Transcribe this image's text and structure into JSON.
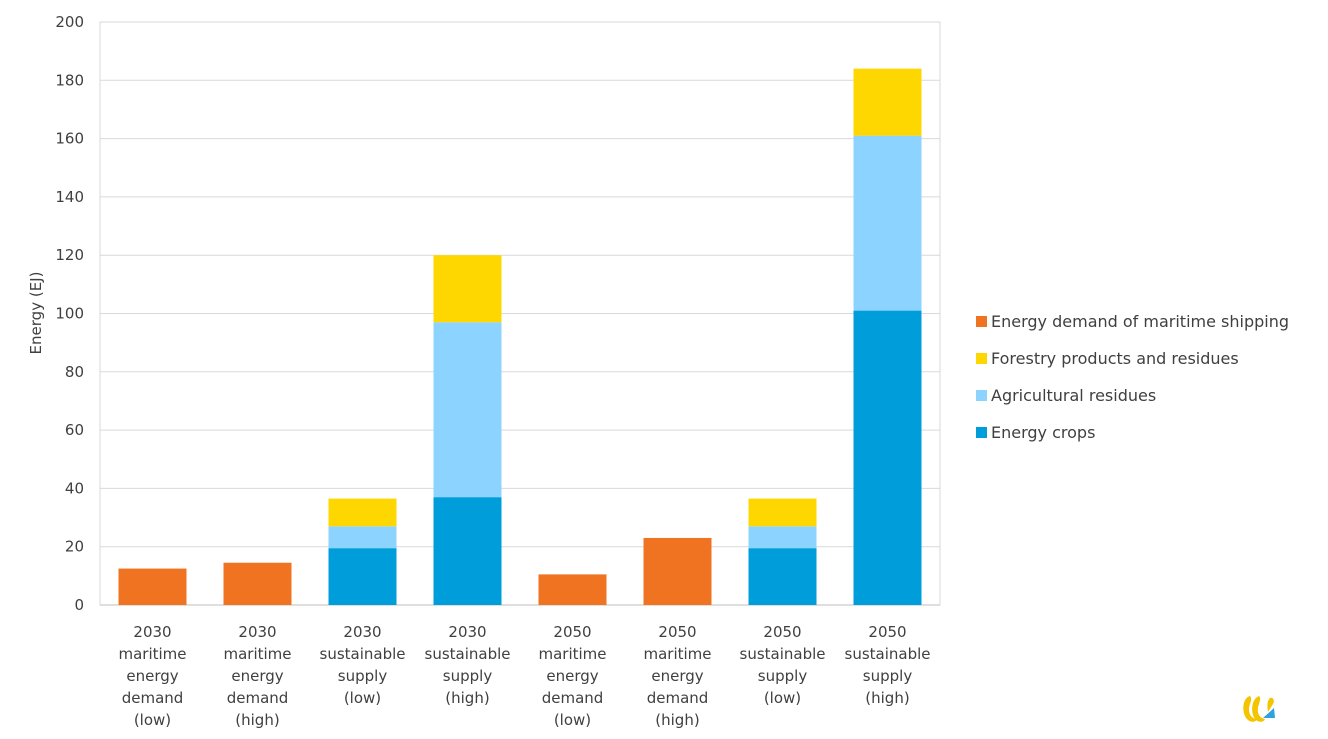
{
  "chart_data": {
    "type": "bar",
    "stacked": true,
    "ylabel": "Energy (EJ)",
    "ylim": [
      0,
      200
    ],
    "yticks": [
      0,
      20,
      40,
      60,
      80,
      100,
      120,
      140,
      160,
      180,
      200
    ],
    "grid": true,
    "legend_position": "right",
    "categories": [
      [
        "2030",
        "maritime",
        "energy",
        "demand",
        "(low)"
      ],
      [
        "2030",
        "maritime",
        "energy",
        "demand",
        "(high)"
      ],
      [
        "2030",
        "sustainable",
        "supply",
        "(low)"
      ],
      [
        "2030",
        "sustainable",
        "supply",
        "(high)"
      ],
      [
        "2050",
        "maritime",
        "energy",
        "demand",
        "(low)"
      ],
      [
        "2050",
        "maritime",
        "energy",
        "demand",
        "(high)"
      ],
      [
        "2050",
        "sustainable",
        "supply",
        "(low)"
      ],
      [
        "2050",
        "sustainable",
        "supply",
        "(high)"
      ]
    ],
    "series": [
      {
        "name": "Energy demand of maritime shipping",
        "color": "#F07322",
        "values": [
          12.5,
          14.5,
          0,
          0,
          10.5,
          23,
          0,
          0
        ]
      },
      {
        "name": "Energy crops",
        "color": "#009DDB",
        "values": [
          0,
          0,
          19.5,
          37,
          0,
          0,
          19.5,
          101
        ]
      },
      {
        "name": "Agricultural residues",
        "color": "#8DD3FF",
        "values": [
          0,
          0,
          7.5,
          60,
          0,
          0,
          7.5,
          60
        ]
      },
      {
        "name": "Forestry products and residues",
        "color": "#FFD700",
        "values": [
          0,
          0,
          9.5,
          23,
          0,
          0,
          9.5,
          23
        ]
      }
    ],
    "legend_order": [
      "Energy demand of maritime shipping",
      "Forestry products and residues",
      "Agricultural residues",
      "Energy crops"
    ]
  },
  "logo": {
    "name": "brand-logo-icon",
    "colors": [
      "#F5C400",
      "#2EA3DB"
    ]
  }
}
